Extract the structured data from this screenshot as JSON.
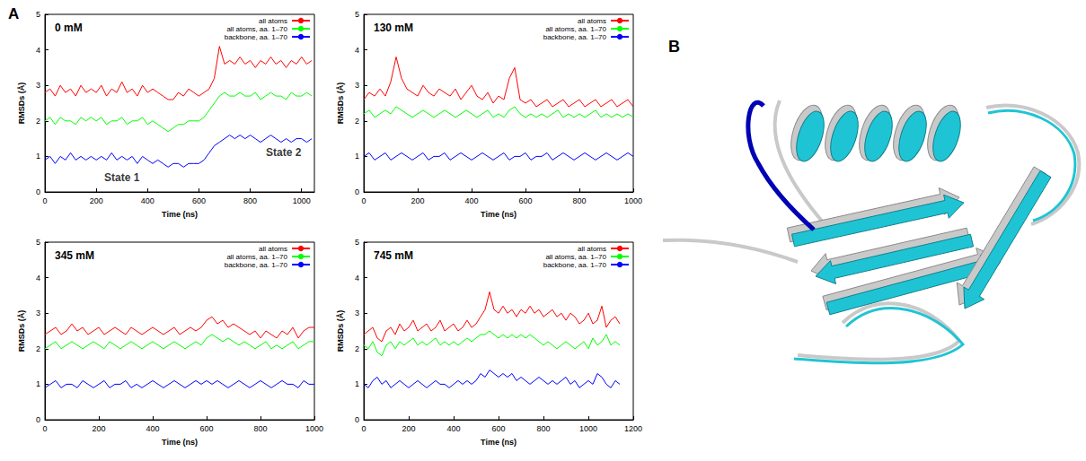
{
  "panel_labels": [
    "A",
    "B"
  ],
  "chart_data": [
    {
      "type": "line",
      "title": "0 mM",
      "x_label": "Time (ns)",
      "y_label": "RMSDs (Å)",
      "xlim": [
        0,
        1050
      ],
      "ylim": [
        0,
        5
      ],
      "xticks": [
        0,
        200,
        400,
        600,
        800,
        1000
      ],
      "yticks": [
        0,
        1,
        2,
        3,
        4,
        5
      ],
      "grid": false,
      "legend": "top-right",
      "annotations": [
        {
          "text": "State 1",
          "x": 300,
          "y": 0.4
        },
        {
          "text": "State 2",
          "x": 930,
          "y": 1.1
        }
      ],
      "x": [
        0,
        20,
        40,
        60,
        80,
        100,
        120,
        140,
        160,
        180,
        200,
        220,
        240,
        260,
        280,
        300,
        320,
        340,
        360,
        380,
        400,
        420,
        440,
        460,
        480,
        500,
        520,
        540,
        560,
        580,
        600,
        620,
        640,
        660,
        680,
        700,
        720,
        740,
        760,
        780,
        800,
        820,
        840,
        860,
        880,
        900,
        920,
        940,
        960,
        980,
        1000,
        1020,
        1040
      ],
      "series": [
        {
          "name": "all atoms",
          "color": "#ff0000",
          "values": [
            2.8,
            2.9,
            2.7,
            3.0,
            2.8,
            2.9,
            2.7,
            3.0,
            2.8,
            2.9,
            2.8,
            3.0,
            2.7,
            2.9,
            2.8,
            3.1,
            2.8,
            2.9,
            2.7,
            3.0,
            2.8,
            2.9,
            2.8,
            2.7,
            2.6,
            2.6,
            2.8,
            2.7,
            2.9,
            2.8,
            2.7,
            2.8,
            2.9,
            3.2,
            4.1,
            3.6,
            3.7,
            3.6,
            3.8,
            3.6,
            3.7,
            3.5,
            3.7,
            3.6,
            3.8,
            3.6,
            3.7,
            3.5,
            3.7,
            3.6,
            3.8,
            3.6,
            3.7
          ]
        },
        {
          "name": "all atoms, aa. 1–70",
          "color": "#00ff00",
          "values": [
            2.0,
            2.1,
            1.9,
            2.1,
            2.0,
            2.0,
            1.9,
            2.1,
            2.0,
            2.1,
            2.0,
            2.1,
            1.9,
            2.0,
            2.0,
            2.1,
            1.9,
            2.0,
            2.0,
            2.1,
            1.9,
            2.0,
            1.9,
            1.8,
            1.7,
            1.8,
            1.9,
            1.9,
            2.0,
            2.0,
            2.0,
            2.1,
            2.3,
            2.5,
            2.7,
            2.8,
            2.7,
            2.7,
            2.8,
            2.7,
            2.7,
            2.8,
            2.6,
            2.7,
            2.8,
            2.7,
            2.7,
            2.6,
            2.8,
            2.7,
            2.7,
            2.8,
            2.7
          ]
        },
        {
          "name": "backbone, aa. 1–70",
          "color": "#0000ff",
          "values": [
            0.9,
            1.0,
            0.8,
            1.0,
            0.9,
            1.1,
            0.9,
            1.0,
            0.9,
            1.0,
            0.9,
            1.0,
            0.9,
            1.1,
            0.9,
            1.0,
            0.9,
            1.0,
            0.8,
            1.0,
            0.9,
            0.8,
            0.9,
            0.8,
            0.7,
            0.8,
            0.8,
            0.7,
            0.8,
            0.8,
            0.8,
            0.9,
            1.1,
            1.3,
            1.4,
            1.5,
            1.6,
            1.5,
            1.6,
            1.5,
            1.6,
            1.5,
            1.4,
            1.5,
            1.6,
            1.5,
            1.4,
            1.5,
            1.4,
            1.5,
            1.5,
            1.4,
            1.5
          ]
        }
      ]
    },
    {
      "type": "line",
      "title": "130 mM",
      "x_label": "Time (ns)",
      "y_label": "RMSDs (Å)",
      "xlim": [
        0,
        1000
      ],
      "ylim": [
        0,
        5
      ],
      "xticks": [
        0,
        200,
        400,
        600,
        800,
        1000
      ],
      "yticks": [
        0,
        1,
        2,
        3,
        4,
        5
      ],
      "grid": false,
      "legend": "top-right",
      "x": [
        0,
        20,
        40,
        60,
        80,
        100,
        120,
        140,
        160,
        180,
        200,
        220,
        240,
        260,
        280,
        300,
        320,
        340,
        360,
        380,
        400,
        420,
        440,
        460,
        480,
        500,
        520,
        540,
        560,
        580,
        600,
        620,
        640,
        660,
        680,
        700,
        720,
        740,
        760,
        780,
        800,
        820,
        840,
        860,
        880,
        900,
        920,
        940,
        960,
        980,
        1000
      ],
      "series": [
        {
          "name": "all atoms",
          "color": "#ff0000",
          "values": [
            2.6,
            2.8,
            2.7,
            2.9,
            2.7,
            3.1,
            3.8,
            3.2,
            2.9,
            2.8,
            2.7,
            3.0,
            2.8,
            2.7,
            2.9,
            2.8,
            2.7,
            2.9,
            2.6,
            2.8,
            3.0,
            2.7,
            2.6,
            2.8,
            2.5,
            2.7,
            2.6,
            3.2,
            3.5,
            2.6,
            2.5,
            2.6,
            2.4,
            2.5,
            2.6,
            2.4,
            2.5,
            2.6,
            2.4,
            2.5,
            2.6,
            2.4,
            2.5,
            2.6,
            2.4,
            2.5,
            2.6,
            2.4,
            2.5,
            2.6,
            2.4
          ]
        },
        {
          "name": "all atoms, aa. 1–70",
          "color": "#00ff00",
          "values": [
            2.2,
            2.3,
            2.1,
            2.2,
            2.3,
            2.2,
            2.4,
            2.3,
            2.2,
            2.1,
            2.2,
            2.3,
            2.2,
            2.1,
            2.2,
            2.3,
            2.2,
            2.1,
            2.2,
            2.3,
            2.2,
            2.1,
            2.2,
            2.3,
            2.1,
            2.2,
            2.1,
            2.3,
            2.4,
            2.2,
            2.1,
            2.2,
            2.1,
            2.2,
            2.1,
            2.2,
            2.3,
            2.1,
            2.2,
            2.1,
            2.2,
            2.1,
            2.2,
            2.3,
            2.1,
            2.2,
            2.1,
            2.2,
            2.1,
            2.2,
            2.1
          ]
        },
        {
          "name": "backbone, aa. 1–70",
          "color": "#0000ff",
          "values": [
            1.0,
            1.1,
            0.9,
            1.0,
            1.1,
            0.9,
            1.0,
            1.1,
            1.0,
            0.9,
            1.0,
            1.1,
            0.9,
            1.0,
            1.0,
            1.1,
            0.9,
            1.0,
            1.1,
            1.0,
            0.9,
            1.0,
            1.1,
            1.0,
            0.9,
            1.0,
            1.1,
            0.9,
            1.0,
            1.0,
            1.1,
            0.9,
            1.0,
            1.0,
            1.1,
            0.9,
            1.0,
            1.1,
            1.0,
            0.9,
            1.0,
            1.1,
            1.0,
            0.9,
            1.0,
            1.1,
            1.0,
            0.9,
            1.0,
            1.1,
            1.0
          ]
        }
      ]
    },
    {
      "type": "line",
      "title": "345 mM",
      "x_label": "Time (ns)",
      "y_label": "RMSDs (Å)",
      "xlim": [
        0,
        1000
      ],
      "ylim": [
        0,
        5
      ],
      "xticks": [
        0,
        200,
        400,
        600,
        800,
        1000
      ],
      "yticks": [
        0,
        1,
        2,
        3,
        4,
        5
      ],
      "grid": false,
      "legend": "top-right",
      "x": [
        0,
        20,
        40,
        60,
        80,
        100,
        120,
        140,
        160,
        180,
        200,
        220,
        240,
        260,
        280,
        300,
        320,
        340,
        360,
        380,
        400,
        420,
        440,
        460,
        480,
        500,
        520,
        540,
        560,
        580,
        600,
        620,
        640,
        660,
        680,
        700,
        720,
        740,
        760,
        780,
        800,
        820,
        840,
        860,
        880,
        900,
        920,
        940,
        960,
        980,
        1000
      ],
      "series": [
        {
          "name": "all atoms",
          "color": "#ff0000",
          "values": [
            2.4,
            2.5,
            2.6,
            2.4,
            2.5,
            2.7,
            2.5,
            2.6,
            2.4,
            2.5,
            2.6,
            2.4,
            2.5,
            2.6,
            2.5,
            2.4,
            2.6,
            2.5,
            2.4,
            2.5,
            2.6,
            2.5,
            2.4,
            2.5,
            2.6,
            2.4,
            2.5,
            2.6,
            2.5,
            2.6,
            2.8,
            2.9,
            2.7,
            2.8,
            2.6,
            2.7,
            2.6,
            2.5,
            2.4,
            2.5,
            2.3,
            2.5,
            2.4,
            2.3,
            2.5,
            2.4,
            2.6,
            2.3,
            2.5,
            2.6,
            2.6
          ]
        },
        {
          "name": "all atoms, aa. 1–70",
          "color": "#00ff00",
          "values": [
            2.0,
            2.1,
            2.2,
            2.0,
            2.1,
            2.2,
            2.1,
            2.0,
            2.1,
            2.2,
            2.1,
            2.0,
            2.2,
            2.1,
            2.0,
            2.1,
            2.2,
            2.1,
            2.0,
            2.1,
            2.2,
            2.1,
            2.0,
            2.1,
            2.2,
            2.1,
            2.0,
            2.1,
            2.2,
            2.1,
            2.3,
            2.4,
            2.3,
            2.2,
            2.3,
            2.2,
            2.1,
            2.2,
            2.1,
            2.0,
            2.1,
            2.2,
            2.0,
            2.1,
            2.0,
            2.1,
            2.2,
            2.0,
            2.1,
            2.2,
            2.2
          ]
        },
        {
          "name": "backbone, aa. 1–70",
          "color": "#0000ff",
          "values": [
            0.9,
            1.0,
            1.1,
            0.9,
            1.0,
            1.0,
            0.9,
            1.1,
            1.0,
            0.9,
            1.0,
            1.1,
            0.9,
            1.0,
            1.0,
            1.1,
            0.9,
            1.0,
            0.9,
            1.0,
            1.1,
            1.0,
            0.9,
            1.0,
            1.1,
            1.0,
            0.9,
            1.0,
            1.1,
            1.0,
            1.1,
            1.0,
            1.1,
            1.0,
            0.9,
            1.0,
            1.1,
            1.0,
            0.9,
            1.0,
            1.1,
            1.0,
            0.9,
            1.0,
            1.1,
            1.0,
            1.0,
            0.9,
            1.1,
            1.0,
            1.0
          ]
        }
      ]
    },
    {
      "type": "line",
      "title": "745 mM",
      "x_label": "Time (ns)",
      "y_label": "RMSDs (Å)",
      "xlim": [
        0,
        1200
      ],
      "ylim": [
        0,
        5
      ],
      "xticks": [
        0,
        200,
        400,
        600,
        800,
        1000,
        1200
      ],
      "yticks": [
        0,
        1,
        2,
        3,
        4,
        5
      ],
      "grid": false,
      "legend": "top-right",
      "x": [
        0,
        20,
        40,
        60,
        80,
        100,
        120,
        140,
        160,
        180,
        200,
        220,
        240,
        260,
        280,
        300,
        320,
        340,
        360,
        380,
        400,
        420,
        440,
        460,
        480,
        500,
        520,
        540,
        560,
        580,
        600,
        620,
        640,
        660,
        680,
        700,
        720,
        740,
        760,
        780,
        800,
        820,
        840,
        860,
        880,
        900,
        920,
        940,
        960,
        980,
        1000,
        1020,
        1040,
        1060,
        1080,
        1100,
        1120,
        1140
      ],
      "series": [
        {
          "name": "all atoms",
          "color": "#ff0000",
          "values": [
            2.4,
            2.5,
            2.6,
            2.3,
            2.2,
            2.5,
            2.6,
            2.4,
            2.7,
            2.5,
            2.6,
            2.8,
            2.5,
            2.6,
            2.7,
            2.5,
            2.6,
            2.8,
            2.5,
            2.6,
            2.7,
            2.5,
            2.6,
            2.8,
            2.6,
            2.7,
            2.9,
            3.1,
            3.6,
            3.1,
            3.0,
            3.2,
            3.0,
            3.1,
            2.9,
            3.1,
            3.0,
            3.2,
            3.0,
            3.1,
            2.9,
            3.0,
            3.1,
            2.9,
            3.0,
            2.8,
            3.0,
            2.9,
            2.7,
            2.8,
            3.0,
            2.7,
            2.8,
            3.2,
            2.6,
            2.8,
            2.9,
            2.7
          ]
        },
        {
          "name": "all atoms, aa. 1–70",
          "color": "#00ff00",
          "values": [
            2.1,
            2.0,
            2.2,
            1.9,
            1.8,
            2.1,
            2.2,
            2.0,
            2.2,
            2.1,
            2.2,
            2.3,
            2.1,
            2.2,
            2.1,
            2.2,
            2.3,
            2.1,
            2.2,
            2.1,
            2.2,
            2.1,
            2.2,
            2.3,
            2.2,
            2.3,
            2.4,
            2.4,
            2.5,
            2.4,
            2.3,
            2.4,
            2.3,
            2.4,
            2.3,
            2.4,
            2.3,
            2.4,
            2.3,
            2.2,
            2.1,
            2.2,
            2.1,
            2.0,
            2.1,
            2.2,
            2.1,
            2.0,
            2.1,
            2.2,
            2.0,
            2.3,
            2.1,
            2.2,
            2.4,
            2.1,
            2.2,
            2.1
          ]
        },
        {
          "name": "backbone, aa. 1–70",
          "color": "#0000ff",
          "values": [
            1.0,
            0.9,
            1.1,
            1.2,
            1.0,
            1.1,
            0.9,
            1.0,
            1.1,
            1.0,
            0.9,
            1.0,
            1.1,
            1.0,
            0.9,
            1.0,
            1.1,
            1.0,
            1.0,
            0.9,
            1.0,
            1.1,
            1.0,
            1.1,
            1.0,
            1.1,
            1.3,
            1.2,
            1.4,
            1.3,
            1.2,
            1.3,
            1.2,
            1.3,
            1.1,
            1.2,
            1.1,
            1.0,
            1.1,
            1.2,
            1.1,
            1.0,
            1.1,
            1.0,
            1.1,
            1.2,
            1.0,
            1.1,
            0.9,
            1.0,
            1.1,
            1.0,
            1.3,
            1.2,
            1.0,
            0.9,
            1.1,
            1.0
          ]
        }
      ]
    }
  ]
}
